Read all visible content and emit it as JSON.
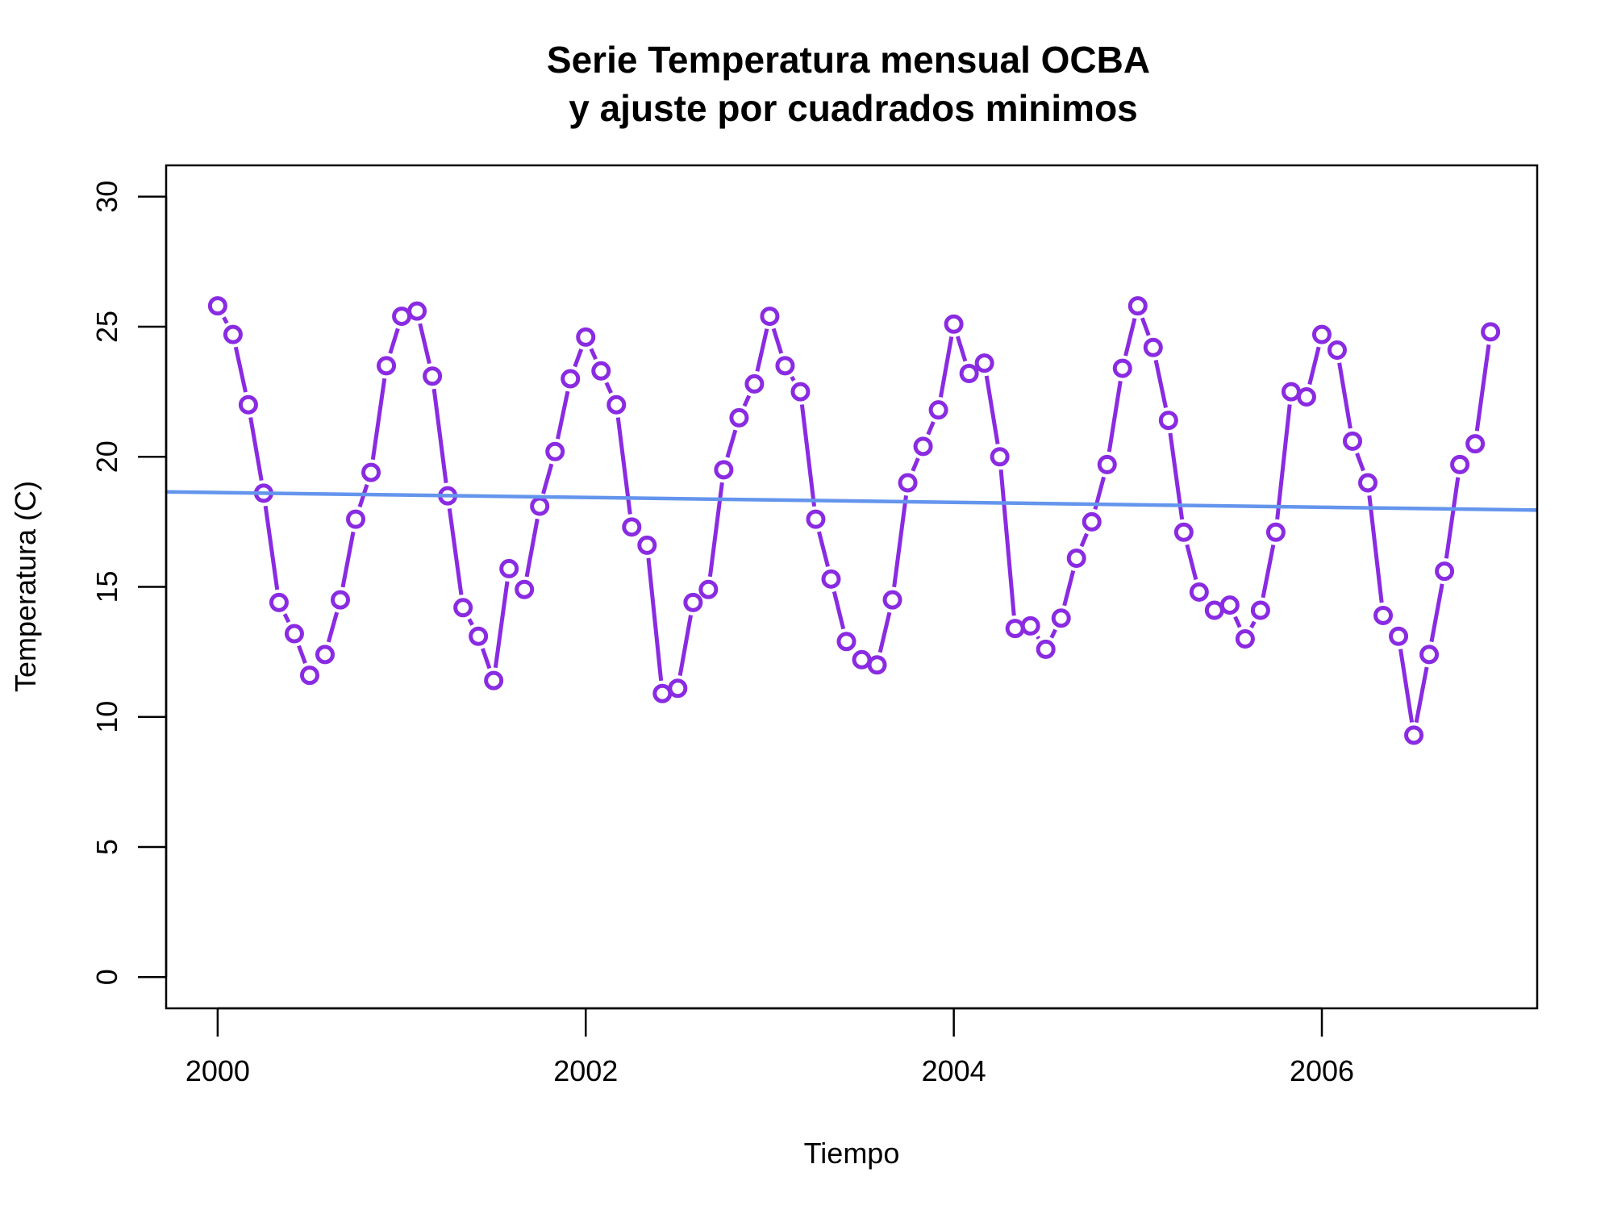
{
  "chart_data": {
    "type": "line",
    "title_line1": "Serie Temperatura mensual OCBA",
    "title_line2": "y ajuste por cuadrados minimos",
    "xlabel": "Tiempo",
    "ylabel": "Temperatura (C)",
    "xlim": [
      1999.72,
      2007.17
    ],
    "ylim": [
      -1.2,
      31.2
    ],
    "xticks": [
      2000,
      2002,
      2004,
      2006
    ],
    "xtick_labels": [
      "2000",
      "2002",
      "2004",
      "2006"
    ],
    "yticks": [
      0,
      5,
      10,
      15,
      20,
      25,
      30
    ],
    "ytick_labels": [
      "0",
      "5",
      "10",
      "15",
      "20",
      "25",
      "30"
    ],
    "grid": false,
    "legend": "none",
    "series": [
      {
        "color": "#8a2be2",
        "style": "points-and-lines",
        "x_start": 2000,
        "step": 0.08333,
        "values": [
          25.8,
          24.7,
          22.0,
          18.6,
          14.4,
          13.2,
          11.6,
          12.4,
          14.5,
          17.6,
          19.4,
          23.5,
          25.4,
          25.6,
          23.1,
          18.5,
          14.2,
          13.1,
          11.4,
          15.7,
          14.9,
          18.1,
          20.2,
          23.0,
          24.6,
          23.3,
          22.0,
          17.3,
          16.6,
          10.9,
          11.1,
          14.4,
          14.9,
          19.5,
          21.5,
          22.8,
          25.4,
          23.5,
          22.5,
          17.6,
          15.3,
          12.9,
          12.2,
          12.0,
          14.5,
          19.0,
          20.4,
          21.8,
          25.1,
          23.2,
          23.6,
          20.0,
          13.4,
          13.5,
          12.6,
          13.8,
          16.1,
          17.5,
          19.7,
          23.4,
          25.8,
          24.2,
          21.4,
          17.1,
          14.8,
          14.1,
          14.3,
          13.0,
          14.1,
          17.1,
          22.5,
          22.3,
          24.7,
          24.1,
          20.6,
          19.0,
          13.9,
          13.1,
          9.3,
          12.4,
          15.6,
          19.7,
          20.5,
          24.8
        ]
      },
      {
        "color": "#6495ed",
        "style": "fit-line",
        "x": [
          1999.72,
          2007.17
        ],
        "values": [
          18.65,
          17.95
        ]
      }
    ]
  }
}
